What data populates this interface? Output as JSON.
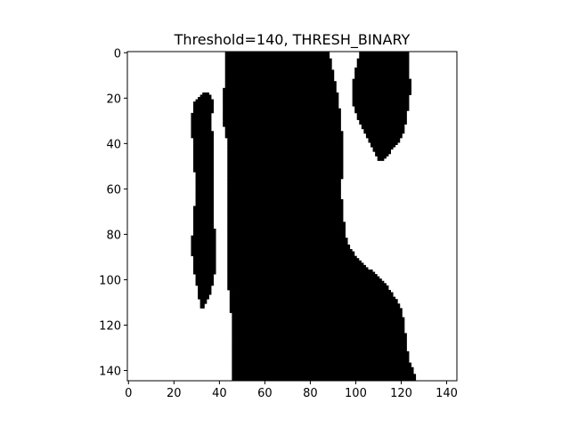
{
  "chart_data": {
    "type": "heatmap",
    "title": "Threshold=140, THRESH_BINARY",
    "xlabel": "",
    "ylabel": "",
    "colormap": "gray",
    "colors": {
      "foreground": "#000000",
      "background": "#ffffff"
    },
    "image_size": [
      145,
      145
    ],
    "xlim": [
      -0.5,
      144.5
    ],
    "ylim": [
      144.5,
      -0.5
    ],
    "x_ticks": [
      0,
      20,
      40,
      60,
      80,
      100,
      120,
      140
    ],
    "x_tick_labels": [
      "0",
      "20",
      "40",
      "60",
      "80",
      "100",
      "120",
      "140"
    ],
    "y_ticks": [
      0,
      20,
      40,
      60,
      80,
      100,
      120,
      140
    ],
    "y_tick_labels": [
      "0",
      "20",
      "40",
      "60",
      "80",
      "100",
      "120",
      "140"
    ],
    "black_regions": [
      {
        "name": "left-strip",
        "rows": [
          18,
          112
        ],
        "left_edge": [
          [
            18,
            33
          ],
          [
            22,
            29
          ],
          [
            30,
            28
          ],
          [
            45,
            29
          ],
          [
            60,
            30
          ],
          [
            75,
            29
          ],
          [
            85,
            28
          ],
          [
            95,
            29
          ],
          [
            105,
            31
          ],
          [
            112,
            32
          ]
        ],
        "right_edge": [
          [
            18,
            35
          ],
          [
            22,
            37
          ],
          [
            30,
            36
          ],
          [
            40,
            37
          ],
          [
            55,
            37
          ],
          [
            70,
            37
          ],
          [
            85,
            38
          ],
          [
            95,
            38
          ],
          [
            105,
            36
          ],
          [
            112,
            33
          ]
        ]
      },
      {
        "name": "main-body",
        "rows": [
          0,
          144
        ],
        "left_edge": [
          [
            0,
            43
          ],
          [
            10,
            43
          ],
          [
            20,
            42
          ],
          [
            30,
            42
          ],
          [
            40,
            44
          ],
          [
            60,
            44
          ],
          [
            80,
            44
          ],
          [
            100,
            44
          ],
          [
            110,
            45
          ],
          [
            120,
            46
          ],
          [
            144,
            46
          ]
        ],
        "right_edge": [
          [
            0,
            88
          ],
          [
            10,
            90
          ],
          [
            20,
            92
          ],
          [
            30,
            93
          ],
          [
            40,
            94
          ],
          [
            50,
            94
          ],
          [
            60,
            93
          ],
          [
            70,
            94
          ],
          [
            80,
            95
          ],
          [
            86,
            97
          ],
          [
            90,
            100
          ],
          [
            94,
            104
          ],
          [
            98,
            109
          ],
          [
            102,
            113
          ],
          [
            108,
            117
          ],
          [
            114,
            120
          ],
          [
            120,
            121
          ],
          [
            128,
            122
          ],
          [
            136,
            123
          ],
          [
            140,
            125
          ],
          [
            144,
            126
          ]
        ]
      },
      {
        "name": "upper-right-blob",
        "rows": [
          0,
          47
        ],
        "left_edge": [
          [
            0,
            102
          ],
          [
            8,
            100
          ],
          [
            15,
            99
          ],
          [
            22,
            99
          ],
          [
            28,
            101
          ],
          [
            35,
            104
          ],
          [
            40,
            107
          ],
          [
            47,
            110
          ]
        ],
        "right_edge": [
          [
            0,
            123
          ],
          [
            8,
            123
          ],
          [
            15,
            124
          ],
          [
            22,
            123
          ],
          [
            28,
            122
          ],
          [
            35,
            121
          ],
          [
            40,
            118
          ],
          [
            47,
            112
          ]
        ]
      }
    ]
  }
}
